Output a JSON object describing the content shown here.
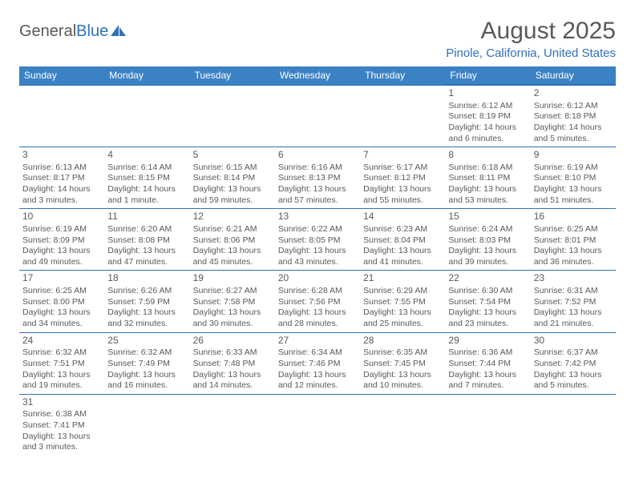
{
  "logo": {
    "text1": "General",
    "text2": "Blue"
  },
  "title": "August 2025",
  "location": "Pinole, California, United States",
  "colors": {
    "header_bg": "#3b82c4",
    "header_text": "#ffffff",
    "border": "#2f71b8",
    "text": "#595959",
    "accent": "#2f71b8"
  },
  "weekdays": [
    "Sunday",
    "Monday",
    "Tuesday",
    "Wednesday",
    "Thursday",
    "Friday",
    "Saturday"
  ],
  "weeks": [
    [
      null,
      null,
      null,
      null,
      null,
      {
        "d": "1",
        "sr": "Sunrise: 6:12 AM",
        "ss": "Sunset: 8:19 PM",
        "dl1": "Daylight: 14 hours",
        "dl2": "and 6 minutes."
      },
      {
        "d": "2",
        "sr": "Sunrise: 6:12 AM",
        "ss": "Sunset: 8:18 PM",
        "dl1": "Daylight: 14 hours",
        "dl2": "and 5 minutes."
      }
    ],
    [
      {
        "d": "3",
        "sr": "Sunrise: 6:13 AM",
        "ss": "Sunset: 8:17 PM",
        "dl1": "Daylight: 14 hours",
        "dl2": "and 3 minutes."
      },
      {
        "d": "4",
        "sr": "Sunrise: 6:14 AM",
        "ss": "Sunset: 8:15 PM",
        "dl1": "Daylight: 14 hours",
        "dl2": "and 1 minute."
      },
      {
        "d": "5",
        "sr": "Sunrise: 6:15 AM",
        "ss": "Sunset: 8:14 PM",
        "dl1": "Daylight: 13 hours",
        "dl2": "and 59 minutes."
      },
      {
        "d": "6",
        "sr": "Sunrise: 6:16 AM",
        "ss": "Sunset: 8:13 PM",
        "dl1": "Daylight: 13 hours",
        "dl2": "and 57 minutes."
      },
      {
        "d": "7",
        "sr": "Sunrise: 6:17 AM",
        "ss": "Sunset: 8:12 PM",
        "dl1": "Daylight: 13 hours",
        "dl2": "and 55 minutes."
      },
      {
        "d": "8",
        "sr": "Sunrise: 6:18 AM",
        "ss": "Sunset: 8:11 PM",
        "dl1": "Daylight: 13 hours",
        "dl2": "and 53 minutes."
      },
      {
        "d": "9",
        "sr": "Sunrise: 6:19 AM",
        "ss": "Sunset: 8:10 PM",
        "dl1": "Daylight: 13 hours",
        "dl2": "and 51 minutes."
      }
    ],
    [
      {
        "d": "10",
        "sr": "Sunrise: 6:19 AM",
        "ss": "Sunset: 8:09 PM",
        "dl1": "Daylight: 13 hours",
        "dl2": "and 49 minutes."
      },
      {
        "d": "11",
        "sr": "Sunrise: 6:20 AM",
        "ss": "Sunset: 8:08 PM",
        "dl1": "Daylight: 13 hours",
        "dl2": "and 47 minutes."
      },
      {
        "d": "12",
        "sr": "Sunrise: 6:21 AM",
        "ss": "Sunset: 8:06 PM",
        "dl1": "Daylight: 13 hours",
        "dl2": "and 45 minutes."
      },
      {
        "d": "13",
        "sr": "Sunrise: 6:22 AM",
        "ss": "Sunset: 8:05 PM",
        "dl1": "Daylight: 13 hours",
        "dl2": "and 43 minutes."
      },
      {
        "d": "14",
        "sr": "Sunrise: 6:23 AM",
        "ss": "Sunset: 8:04 PM",
        "dl1": "Daylight: 13 hours",
        "dl2": "and 41 minutes."
      },
      {
        "d": "15",
        "sr": "Sunrise: 6:24 AM",
        "ss": "Sunset: 8:03 PM",
        "dl1": "Daylight: 13 hours",
        "dl2": "and 39 minutes."
      },
      {
        "d": "16",
        "sr": "Sunrise: 6:25 AM",
        "ss": "Sunset: 8:01 PM",
        "dl1": "Daylight: 13 hours",
        "dl2": "and 36 minutes."
      }
    ],
    [
      {
        "d": "17",
        "sr": "Sunrise: 6:25 AM",
        "ss": "Sunset: 8:00 PM",
        "dl1": "Daylight: 13 hours",
        "dl2": "and 34 minutes."
      },
      {
        "d": "18",
        "sr": "Sunrise: 6:26 AM",
        "ss": "Sunset: 7:59 PM",
        "dl1": "Daylight: 13 hours",
        "dl2": "and 32 minutes."
      },
      {
        "d": "19",
        "sr": "Sunrise: 6:27 AM",
        "ss": "Sunset: 7:58 PM",
        "dl1": "Daylight: 13 hours",
        "dl2": "and 30 minutes."
      },
      {
        "d": "20",
        "sr": "Sunrise: 6:28 AM",
        "ss": "Sunset: 7:56 PM",
        "dl1": "Daylight: 13 hours",
        "dl2": "and 28 minutes."
      },
      {
        "d": "21",
        "sr": "Sunrise: 6:29 AM",
        "ss": "Sunset: 7:55 PM",
        "dl1": "Daylight: 13 hours",
        "dl2": "and 25 minutes."
      },
      {
        "d": "22",
        "sr": "Sunrise: 6:30 AM",
        "ss": "Sunset: 7:54 PM",
        "dl1": "Daylight: 13 hours",
        "dl2": "and 23 minutes."
      },
      {
        "d": "23",
        "sr": "Sunrise: 6:31 AM",
        "ss": "Sunset: 7:52 PM",
        "dl1": "Daylight: 13 hours",
        "dl2": "and 21 minutes."
      }
    ],
    [
      {
        "d": "24",
        "sr": "Sunrise: 6:32 AM",
        "ss": "Sunset: 7:51 PM",
        "dl1": "Daylight: 13 hours",
        "dl2": "and 19 minutes."
      },
      {
        "d": "25",
        "sr": "Sunrise: 6:32 AM",
        "ss": "Sunset: 7:49 PM",
        "dl1": "Daylight: 13 hours",
        "dl2": "and 16 minutes."
      },
      {
        "d": "26",
        "sr": "Sunrise: 6:33 AM",
        "ss": "Sunset: 7:48 PM",
        "dl1": "Daylight: 13 hours",
        "dl2": "and 14 minutes."
      },
      {
        "d": "27",
        "sr": "Sunrise: 6:34 AM",
        "ss": "Sunset: 7:46 PM",
        "dl1": "Daylight: 13 hours",
        "dl2": "and 12 minutes."
      },
      {
        "d": "28",
        "sr": "Sunrise: 6:35 AM",
        "ss": "Sunset: 7:45 PM",
        "dl1": "Daylight: 13 hours",
        "dl2": "and 10 minutes."
      },
      {
        "d": "29",
        "sr": "Sunrise: 6:36 AM",
        "ss": "Sunset: 7:44 PM",
        "dl1": "Daylight: 13 hours",
        "dl2": "and 7 minutes."
      },
      {
        "d": "30",
        "sr": "Sunrise: 6:37 AM",
        "ss": "Sunset: 7:42 PM",
        "dl1": "Daylight: 13 hours",
        "dl2": "and 5 minutes."
      }
    ],
    [
      {
        "d": "31",
        "sr": "Sunrise: 6:38 AM",
        "ss": "Sunset: 7:41 PM",
        "dl1": "Daylight: 13 hours",
        "dl2": "and 3 minutes."
      },
      null,
      null,
      null,
      null,
      null,
      null
    ]
  ]
}
